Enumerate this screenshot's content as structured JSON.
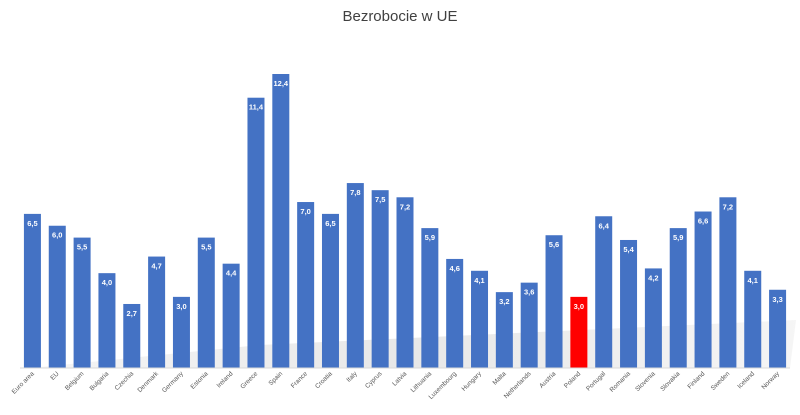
{
  "chart_data": {
    "type": "bar",
    "title": "Bezrobocie w UE",
    "xlabel": "",
    "ylabel": "",
    "ylim": [
      0,
      13.2
    ],
    "grid": false,
    "legend": "none",
    "bar_color": "#4472C4",
    "highlight_color": "#FF0000",
    "highlight_category": "Poland",
    "categories": [
      "Euro area",
      "EU",
      "Belgium",
      "Bulgaria",
      "Czechia",
      "Denmark",
      "Germany",
      "Estonia",
      "Ireland",
      "Greece",
      "Spain",
      "France",
      "Croatia",
      "Italy",
      "Cyprus",
      "Latvia",
      "Lithuania",
      "Luxembourg",
      "Hungary",
      "Malta",
      "Netherlands",
      "Austria",
      "Poland",
      "Portugal",
      "Romania",
      "Slovenia",
      "Slovakia",
      "Finland",
      "Sweden",
      "Iceland",
      "Norway"
    ],
    "values": [
      6.5,
      6.0,
      5.5,
      4.0,
      2.7,
      4.7,
      3.0,
      5.5,
      4.4,
      11.4,
      12.4,
      7.0,
      6.5,
      7.8,
      7.5,
      7.2,
      5.9,
      4.6,
      4.1,
      3.2,
      3.6,
      5.6,
      3.0,
      6.4,
      5.4,
      4.2,
      5.9,
      6.6,
      7.2,
      4.1,
      3.3
    ],
    "data_labels": [
      "6,5",
      "6,0",
      "5,5",
      "4,0",
      "2,7",
      "4,7",
      "3,0",
      "5,5",
      "4,4",
      "11,4",
      "12,4",
      "7,0",
      "6,5",
      "7,8",
      "7,5",
      "7,2",
      "5,9",
      "4,6",
      "4,1",
      "3,2",
      "3,6",
      "5,6",
      "3,0",
      "6,4",
      "5,4",
      "4,2",
      "5,9",
      "6,6",
      "7,2",
      "4,1",
      "3,3"
    ]
  }
}
